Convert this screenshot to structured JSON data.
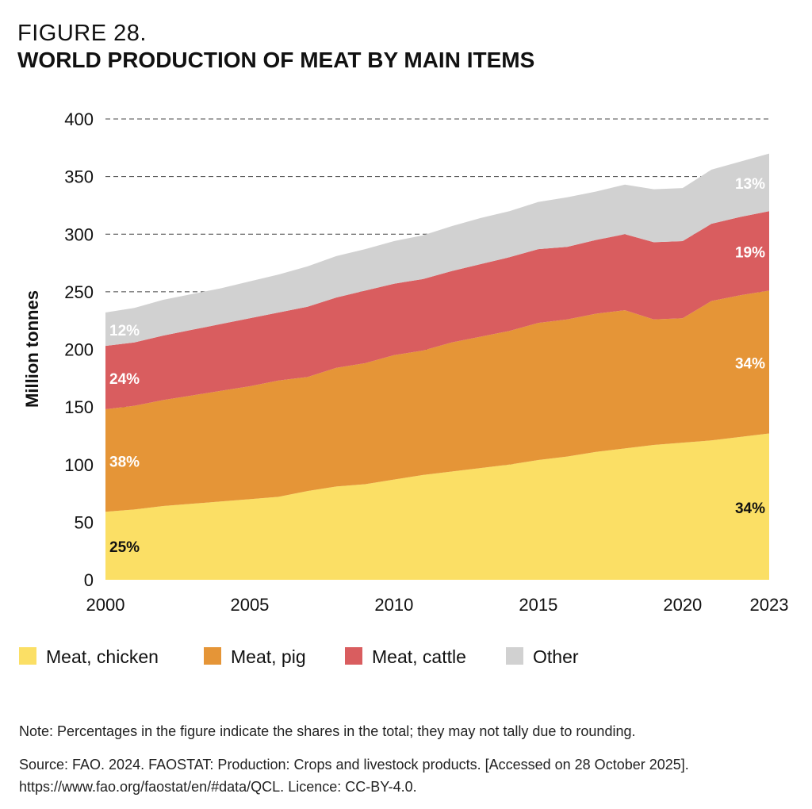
{
  "figure_number": "FIGURE 28.",
  "title": "WORLD PRODUCTION OF MEAT BY MAIN ITEMS",
  "note": "Note: Percentages in the figure indicate the shares in the total; they may not tally due to rounding.",
  "source": "Source: FAO. 2024. FAOSTAT: Production: Crops and livestock products. [Accessed on 28 October 2025]. https://www.fao.org/faostat/en/#data/QCL. Licence: CC-BY-4.0.",
  "chart_data": {
    "type": "area",
    "stacked": true,
    "title": "WORLD PRODUCTION OF MEAT BY MAIN ITEMS",
    "xlabel": "",
    "ylabel": "Million tonnes",
    "xlim": [
      2000,
      2023
    ],
    "ylim": [
      0,
      400
    ],
    "xticks": [
      2000,
      2005,
      2010,
      2015,
      2020,
      2023
    ],
    "yticks": [
      0,
      50,
      100,
      150,
      200,
      250,
      300,
      350,
      400
    ],
    "grid": "horizontal dashed",
    "legend_position": "bottom",
    "x": [
      2000,
      2001,
      2002,
      2003,
      2004,
      2005,
      2006,
      2007,
      2008,
      2009,
      2010,
      2011,
      2012,
      2013,
      2014,
      2015,
      2016,
      2017,
      2018,
      2019,
      2020,
      2021,
      2022,
      2023
    ],
    "series": [
      {
        "name": "Meat, chicken",
        "color": "#FBDF65",
        "values": [
          59,
          61,
          64,
          66,
          68,
          70,
          72,
          77,
          81,
          83,
          87,
          91,
          94,
          97,
          100,
          104,
          107,
          111,
          114,
          117,
          119,
          121,
          124,
          127
        ],
        "share_2000": "25%",
        "share_2023": "34%",
        "label_color": "#111111"
      },
      {
        "name": "Meat, pig",
        "color": "#E59537",
        "values": [
          89,
          90,
          92,
          94,
          96,
          98,
          101,
          99,
          103,
          105,
          108,
          108,
          112,
          114,
          116,
          119,
          119,
          120,
          120,
          109,
          108,
          121,
          123,
          124
        ],
        "share_2000": "38%",
        "share_2023": "34%",
        "label_color": "#FFFFFF"
      },
      {
        "name": "Meat, cattle",
        "color": "#D95D5F",
        "values": [
          55,
          55,
          56,
          57,
          58,
          59,
          59,
          61,
          61,
          63,
          62,
          62,
          62,
          63,
          64,
          64,
          63,
          64,
          66,
          67,
          67,
          67,
          68,
          69
        ],
        "share_2000": "24%",
        "share_2023": "19%",
        "label_color": "#FFFFFF"
      },
      {
        "name": "Other",
        "color": "#D1D1D1",
        "values": [
          29,
          30,
          31,
          31,
          31,
          32,
          33,
          35,
          36,
          36,
          37,
          38,
          39,
          40,
          40,
          41,
          43,
          42,
          43,
          46,
          46,
          47,
          48,
          50
        ],
        "share_2000": "12%",
        "share_2023": "13%",
        "label_color": "#FFFFFF"
      }
    ]
  }
}
